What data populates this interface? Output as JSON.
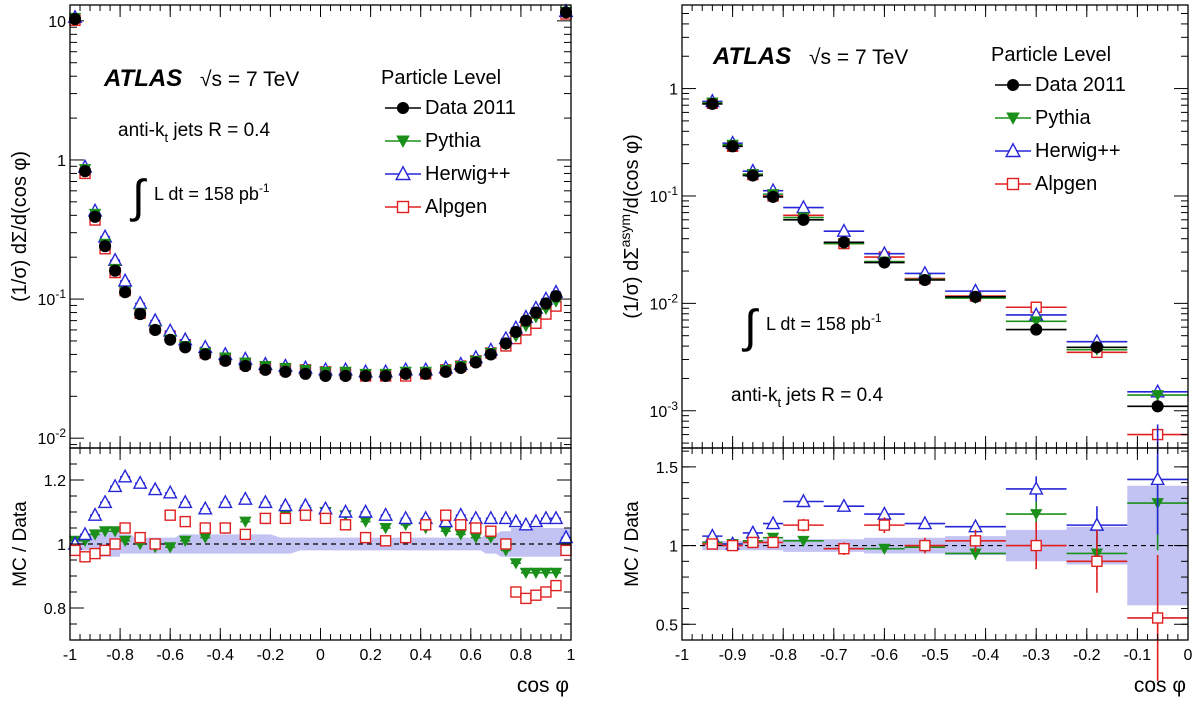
{
  "chart_data": [
    {
      "type": "scatter",
      "panel": "left",
      "experiment": "ATLAS",
      "energy_label": "√s = 7 TeV",
      "jets_label_main": "anti-k",
      "jets_label_sub": "t",
      "jets_label_rest": " jets R = 0.4",
      "lumi_label": "L dt = 158 pb",
      "lumi_exp": "-1",
      "legend_title": "Particle Level",
      "ylabel": "(1/σ) dΣ/d(cos φ)",
      "ratio_ylabel": "MC / Data",
      "xlabel": "cos φ",
      "yscale": "log",
      "ylim": [
        0.0085,
        13
      ],
      "ratio_ylim": [
        0.7,
        1.3
      ],
      "xlim": [
        -1,
        1
      ],
      "x_ticks": [
        "-1",
        "-0.8",
        "-0.6",
        "-0.4",
        "-0.2",
        "0",
        "0.2",
        "0.4",
        "0.6",
        "0.8",
        "1"
      ],
      "y_ticks": [
        "10",
        "1",
        "10-1",
        "10-2"
      ],
      "ratio_y_ticks": [
        "1.2",
        "1",
        "0.8"
      ],
      "x": [
        -0.98,
        -0.94,
        -0.9,
        -0.86,
        -0.82,
        -0.78,
        -0.72,
        -0.66,
        -0.6,
        -0.54,
        -0.46,
        -0.38,
        -0.3,
        -0.22,
        -0.14,
        -0.06,
        0.02,
        0.1,
        0.18,
        0.26,
        0.34,
        0.42,
        0.5,
        0.56,
        0.62,
        0.68,
        0.74,
        0.78,
        0.82,
        0.86,
        0.9,
        0.94,
        0.98
      ],
      "series": [
        {
          "name": "Data 2011",
          "values": [
            10.3,
            0.83,
            0.39,
            0.24,
            0.16,
            0.112,
            0.078,
            0.06,
            0.051,
            0.045,
            0.04,
            0.036,
            0.033,
            0.031,
            0.03,
            0.029,
            0.028,
            0.028,
            0.028,
            0.028,
            0.029,
            0.029,
            0.03,
            0.032,
            0.035,
            0.04,
            0.048,
            0.058,
            0.07,
            0.08,
            0.093,
            0.105,
            11.5
          ]
        },
        {
          "name": "Pythia",
          "values": [
            10.5,
            0.86,
            0.41,
            0.25,
            0.165,
            0.113,
            0.079,
            0.06,
            0.051,
            0.046,
            0.041,
            0.038,
            0.035,
            0.033,
            0.032,
            0.031,
            0.03,
            0.03,
            0.029,
            0.029,
            0.03,
            0.03,
            0.031,
            0.033,
            0.036,
            0.041,
            0.047,
            0.054,
            0.064,
            0.074,
            0.085,
            0.096,
            11.6
          ]
        },
        {
          "name": "Herwig++",
          "values": [
            10.6,
            0.89,
            0.43,
            0.28,
            0.19,
            0.135,
            0.093,
            0.07,
            0.059,
            0.051,
            0.045,
            0.04,
            0.037,
            0.034,
            0.033,
            0.032,
            0.031,
            0.031,
            0.03,
            0.03,
            0.031,
            0.031,
            0.032,
            0.034,
            0.038,
            0.043,
            0.052,
            0.062,
            0.074,
            0.086,
            0.1,
            0.112,
            11.7
          ]
        },
        {
          "name": "Alpgen",
          "values": [
            10.1,
            0.8,
            0.37,
            0.23,
            0.155,
            0.115,
            0.079,
            0.062,
            0.054,
            0.047,
            0.041,
            0.037,
            0.034,
            0.032,
            0.031,
            0.031,
            0.03,
            0.029,
            0.028,
            0.028,
            0.028,
            0.029,
            0.031,
            0.033,
            0.036,
            0.041,
            0.046,
            0.052,
            0.06,
            0.067,
            0.078,
            0.089,
            11.2
          ]
        }
      ],
      "ratios": [
        {
          "name": "Pythia",
          "values": [
            1.01,
            1.01,
            1.03,
            1.04,
            1.04,
            1.01,
            1.0,
            0.99,
            0.99,
            1.01,
            1.02,
            1.05,
            1.07,
            1.08,
            1.09,
            1.1,
            1.1,
            1.09,
            1.07,
            1.05,
            1.06,
            1.05,
            1.04,
            1.03,
            1.02,
            1.02,
            0.98,
            0.94,
            0.91,
            0.91,
            0.91,
            0.91,
            1.0
          ]
        },
        {
          "name": "Herwig++",
          "values": [
            1.0,
            1.03,
            1.09,
            1.13,
            1.18,
            1.21,
            1.19,
            1.17,
            1.16,
            1.13,
            1.11,
            1.13,
            1.14,
            1.13,
            1.12,
            1.12,
            1.11,
            1.1,
            1.1,
            1.09,
            1.08,
            1.08,
            1.07,
            1.09,
            1.08,
            1.08,
            1.08,
            1.07,
            1.06,
            1.07,
            1.08,
            1.08,
            1.02
          ]
        },
        {
          "name": "Alpgen",
          "values": [
            0.98,
            0.96,
            0.97,
            0.98,
            1.0,
            1.05,
            1.02,
            1.0,
            1.09,
            1.07,
            1.05,
            1.05,
            1.03,
            1.08,
            1.08,
            1.09,
            1.08,
            1.06,
            1.02,
            1.01,
            1.02,
            1.06,
            1.09,
            1.06,
            1.05,
            1.04,
            1.0,
            0.85,
            0.83,
            0.84,
            0.85,
            0.87,
            0.98
          ]
        }
      ],
      "band_upper": [
        1.02,
        1.02,
        1.03,
        1.04,
        1.04,
        1.03,
        1.02,
        1.02,
        1.02,
        1.03,
        1.03,
        1.03,
        1.03,
        1.03,
        1.02,
        1.02,
        1.02,
        1.02,
        1.02,
        1.02,
        1.02,
        1.02,
        1.02,
        1.02,
        1.02,
        1.03,
        1.04,
        1.05,
        1.05,
        1.05,
        1.05,
        1.05,
        1.05
      ],
      "band_lower": [
        0.98,
        0.98,
        0.97,
        0.96,
        0.96,
        0.97,
        0.97,
        0.97,
        0.97,
        0.97,
        0.97,
        0.97,
        0.97,
        0.97,
        0.97,
        0.98,
        0.98,
        0.98,
        0.98,
        0.98,
        0.98,
        0.98,
        0.98,
        0.98,
        0.98,
        0.97,
        0.96,
        0.96,
        0.96,
        0.96,
        0.96,
        0.96,
        0.97
      ]
    },
    {
      "type": "scatter",
      "panel": "right",
      "experiment": "ATLAS",
      "energy_label": "√s = 7 TeV",
      "jets_label_main": "anti-k",
      "jets_label_sub": "t",
      "jets_label_rest": " jets R = 0.4",
      "lumi_label": "L dt = 158 pb",
      "lumi_exp": "-1",
      "legend_title": "Particle Level",
      "ylabel": "(1/σ) dΣasym/d(cos φ)",
      "ratio_ylabel": "MC / Data",
      "xlabel": "cos φ",
      "yscale": "log",
      "ylim": [
        0.00045,
        6
      ],
      "ratio_ylim": [
        0.4,
        1.62
      ],
      "xlim": [
        -1,
        0
      ],
      "x_ticks": [
        "-1",
        "-0.9",
        "-0.8",
        "-0.7",
        "-0.6",
        "-0.5",
        "-0.4",
        "-0.3",
        "-0.2",
        "-0.1",
        "0"
      ],
      "y_ticks": [
        "1",
        "10-1",
        "10-2",
        "10-3"
      ],
      "ratio_y_ticks": [
        "1.5",
        "1",
        "0.5"
      ],
      "x": [
        -0.94,
        -0.9,
        -0.86,
        -0.82,
        -0.76,
        -0.68,
        -0.6,
        -0.52,
        -0.42,
        -0.3,
        -0.18,
        -0.06
      ],
      "x_halfwidth": [
        0.02,
        0.02,
        0.02,
        0.02,
        0.04,
        0.04,
        0.04,
        0.04,
        0.06,
        0.06,
        0.06,
        0.06
      ],
      "series": [
        {
          "name": "Data 2011",
          "values": [
            0.72,
            0.29,
            0.155,
            0.098,
            0.06,
            0.037,
            0.024,
            0.0165,
            0.0115,
            0.0057,
            0.0039,
            0.0011
          ]
        },
        {
          "name": "Pythia",
          "values": [
            0.74,
            0.3,
            0.16,
            0.104,
            0.063,
            0.036,
            0.0245,
            0.0167,
            0.0112,
            0.0068,
            0.0037,
            0.0014
          ]
        },
        {
          "name": "Herwig++",
          "values": [
            0.76,
            0.31,
            0.17,
            0.112,
            0.078,
            0.047,
            0.029,
            0.019,
            0.013,
            0.0078,
            0.0044,
            0.0015
          ]
        },
        {
          "name": "Alpgen",
          "values": [
            0.73,
            0.29,
            0.158,
            0.1,
            0.066,
            0.036,
            0.027,
            0.017,
            0.0117,
            0.0092,
            0.0035,
            0.0006
          ]
        }
      ],
      "ratios": [
        {
          "name": "Pythia",
          "values": [
            1.02,
            1.01,
            1.03,
            1.05,
            1.03,
            0.98,
            0.98,
            0.99,
            0.95,
            1.2,
            0.95,
            1.27
          ]
        },
        {
          "name": "Herwig++",
          "values": [
            1.06,
            1.01,
            1.08,
            1.14,
            1.28,
            1.25,
            1.2,
            1.14,
            1.12,
            1.36,
            1.13,
            1.42
          ]
        },
        {
          "name": "Alpgen",
          "values": [
            1.01,
            1.0,
            1.02,
            1.02,
            1.13,
            0.98,
            1.13,
            1.0,
            1.03,
            1.0,
            0.9,
            0.54
          ]
        }
      ],
      "ratio_errors": [
        {
          "name": "Pythia",
          "values": [
            0.01,
            0.01,
            0.01,
            0.02,
            0.02,
            0.02,
            0.03,
            0.03,
            0.04,
            0.08,
            0.1,
            0.3
          ]
        },
        {
          "name": "Herwig++",
          "values": [
            0.01,
            0.01,
            0.01,
            0.02,
            0.02,
            0.02,
            0.03,
            0.03,
            0.04,
            0.08,
            0.12,
            0.35
          ]
        },
        {
          "name": "Alpgen",
          "values": [
            0.02,
            0.02,
            0.02,
            0.03,
            0.04,
            0.04,
            0.05,
            0.05,
            0.07,
            0.15,
            0.2,
            0.4
          ]
        }
      ],
      "band_upper": [
        1.03,
        1.03,
        1.03,
        1.04,
        1.04,
        1.04,
        1.05,
        1.05,
        1.06,
        1.1,
        1.12,
        1.38
      ],
      "band_lower": [
        0.97,
        0.97,
        0.97,
        0.97,
        0.96,
        0.96,
        0.95,
        0.95,
        0.94,
        0.9,
        0.88,
        0.62
      ]
    }
  ],
  "colors": {
    "Data 2011": "#000000",
    "Pythia": "#1a8f1a",
    "Herwig++": "#2626d9",
    "Alpgen": "#e02020",
    "band": "#c3c3f3"
  },
  "markers": {
    "Data 2011": "filled-circle",
    "Pythia": "filled-triangle-down",
    "Herwig++": "open-triangle-up",
    "Alpgen": "open-square"
  }
}
